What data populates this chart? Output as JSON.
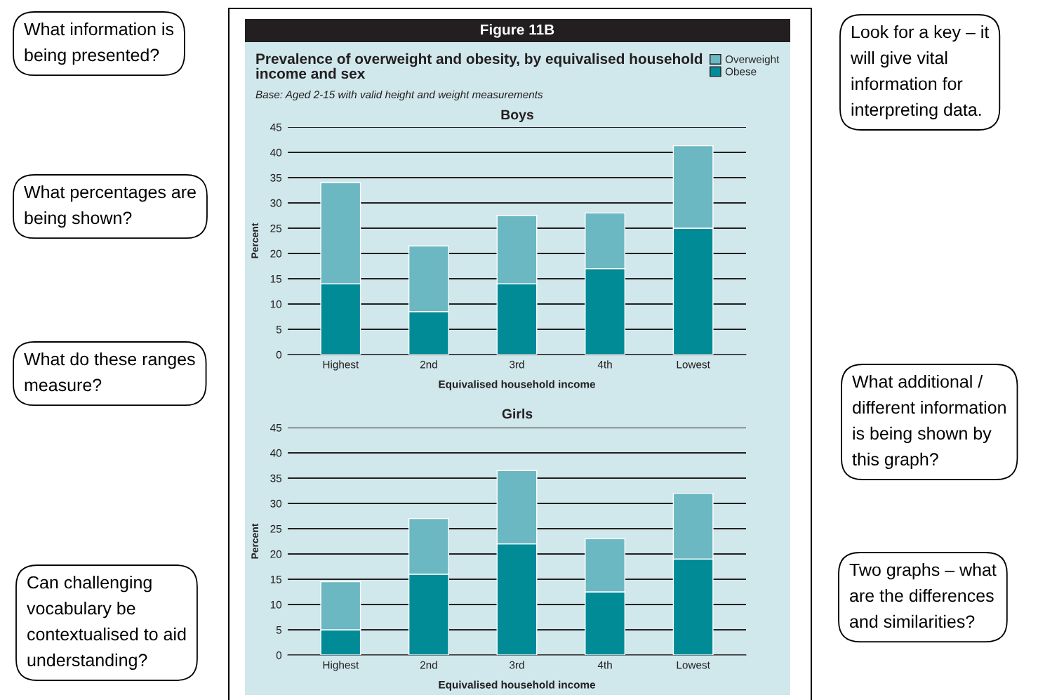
{
  "chart_data": [
    {
      "type": "bar",
      "stacked": true,
      "title": "Boys",
      "xlabel": "Equivalised household income",
      "ylabel": "Percent",
      "categories": [
        "Highest",
        "2nd",
        "3rd",
        "4th",
        "Lowest"
      ],
      "series": [
        {
          "name": "Obese",
          "color": "#008b97",
          "values": [
            14,
            8.5,
            14,
            17,
            25
          ]
        },
        {
          "name": "Overweight",
          "color": "#6bb7c2",
          "values": [
            20,
            13,
            13.5,
            11,
            16.3
          ]
        }
      ],
      "ylim": [
        0,
        45
      ],
      "yticks": [
        0,
        5,
        10,
        15,
        20,
        25,
        30,
        35,
        40,
        45
      ],
      "grid": "y",
      "legend": "top right",
      "annotations": [
        "Figure 11B",
        "Prevalence of overweight and obesity, by equivalised household income and sex",
        "Base: Aged 2-15 with valid height and weight measurements",
        "What information is being presented?",
        "Look for a key – it will give vital information for interpreting data.",
        "What percentages are being shown?",
        "What do these ranges measure?"
      ]
    },
    {
      "type": "bar",
      "stacked": true,
      "title": "Girls",
      "xlabel": "Equivalised household income",
      "ylabel": "Percent",
      "categories": [
        "Highest",
        "2nd",
        "3rd",
        "4th",
        "Lowest"
      ],
      "series": [
        {
          "color": "#008b97",
          "values": [
            5,
            16,
            22,
            12.5,
            19
          ]
        },
        {
          "color": "#6bb7c2",
          "values": [
            9.5,
            11,
            14.5,
            10.5,
            13
          ]
        }
      ],
      "ylim": [
        0,
        45
      ],
      "yticks": [
        0,
        5,
        10,
        15,
        20,
        25,
        30,
        35,
        40,
        45
      ],
      "grid": "y",
      "annotations": [
        "What additional / different information is being shown by this graph?",
        "Two graphs – what are the differences and similarities?",
        "Can challenging vocabulary be contextualised to aid understanding?"
      ]
    }
  ]
}
